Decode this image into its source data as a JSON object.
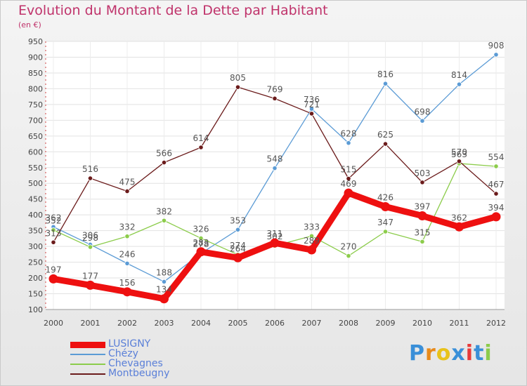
{
  "chart_data": {
    "type": "line",
    "title": "Evolution du Montant de la Dette par Habitant",
    "subtitle": "(en €)",
    "categories": [
      "2000",
      "2001",
      "2002",
      "2003",
      "2004",
      "2005",
      "2006",
      "2007",
      "2008",
      "2009",
      "2010",
      "2011",
      "2012"
    ],
    "ylim": [
      100,
      950
    ],
    "yticks": [
      100,
      150,
      200,
      250,
      300,
      350,
      400,
      450,
      500,
      550,
      600,
      650,
      700,
      750,
      800,
      850,
      900,
      950
    ],
    "grid": true,
    "legend_position": "bottom-left",
    "series": [
      {
        "name": "Chézy",
        "color": "#5b9bd5",
        "values": [
          362,
          306,
          246,
          188,
          278,
          353,
          548,
          736,
          628,
          816,
          698,
          814,
          908
        ]
      },
      {
        "name": "Chevagnes",
        "color": "#8ccc4b",
        "values": [
          352,
          298,
          332,
          382,
          326,
          274,
          302,
          333,
          270,
          347,
          315,
          563,
          554
        ]
      },
      {
        "name": "Montbeugny",
        "color": "#6b1b1b",
        "values": [
          313,
          516,
          475,
          566,
          614,
          805,
          769,
          721,
          515,
          625,
          503,
          570,
          467
        ]
      },
      {
        "name": "LUSIGNY",
        "color": "#ee1010",
        "values": [
          197,
          177,
          156,
          134,
          283,
          264,
          311,
          289,
          469,
          426,
          397,
          362,
          394
        ]
      }
    ]
  },
  "legend": {
    "items": [
      {
        "label": "LUSIGNY",
        "color": "#ee1010"
      },
      {
        "label": "Chézy",
        "color": "#5b9bd5"
      },
      {
        "label": "Chevagnes",
        "color": "#8ccc4b"
      },
      {
        "label": "Montbeugny",
        "color": "#6b1b1b"
      }
    ]
  },
  "logo": {
    "text": "Proxiti",
    "letter_colors": [
      "#3a8fd8",
      "#e88a1a",
      "#e8c21a",
      "#3a8fd8",
      "#e83a3a",
      "#3a8fd8",
      "#8ccc4b"
    ]
  }
}
